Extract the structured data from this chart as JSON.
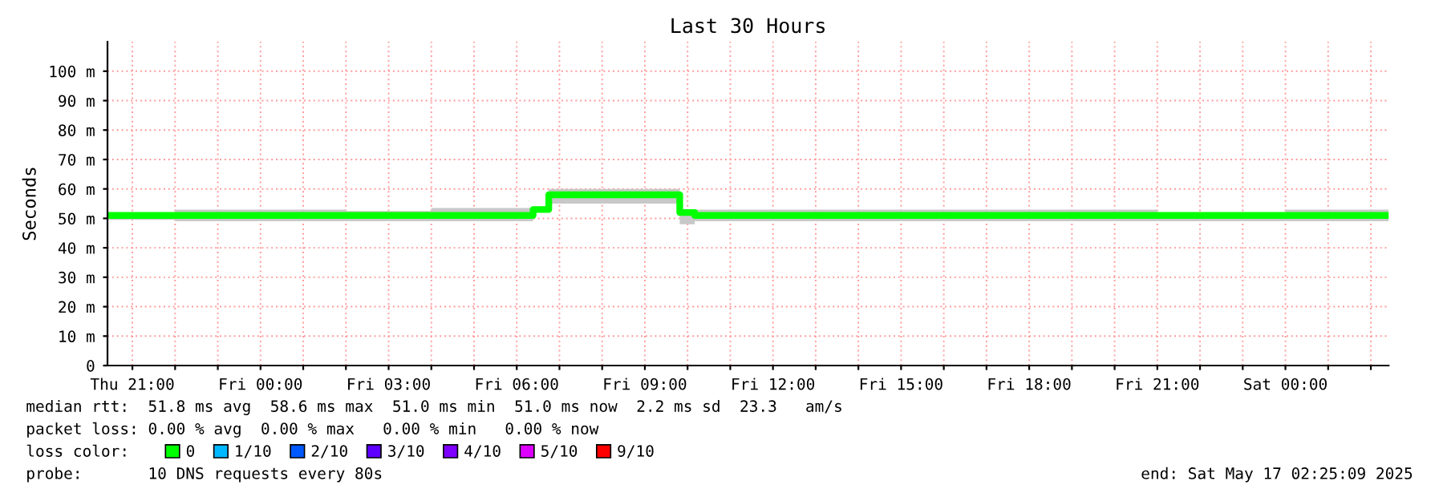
{
  "chart_data": {
    "type": "step",
    "title": "Last 30 Hours",
    "ylabel": "Seconds",
    "x": [
      "2025-05-15T20:25",
      "2025-05-15T22:00",
      "2025-05-16T00:00",
      "2025-05-16T02:00",
      "2025-05-16T04:00",
      "2025-05-16T06:23",
      "2025-05-16T06:45",
      "2025-05-16T08:00",
      "2025-05-16T09:49",
      "2025-05-16T10:10",
      "2025-05-16T12:00",
      "2025-05-16T15:00",
      "2025-05-16T18:00",
      "2025-05-16T21:00",
      "2025-05-17T00:00",
      "2025-05-17T02:25"
    ],
    "series": [
      {
        "name": "0",
        "color": "#00ff00",
        "values": [
          51,
          51,
          51,
          51,
          51,
          53,
          58,
          58,
          52,
          51,
          51,
          51,
          51,
          51,
          51,
          51
        ],
        "lower": [
          49.5,
          49,
          49,
          49,
          49,
          52,
          55,
          55,
          48,
          49,
          49,
          49,
          49,
          49,
          49,
          49
        ],
        "upper": [
          52,
          53,
          53,
          52.5,
          53.5,
          54,
          60,
          60,
          53,
          53,
          53,
          53,
          53,
          52,
          53,
          52
        ]
      },
      {
        "name": "1/10",
        "color": "#00b8ff",
        "values": [
          null,
          null,
          null,
          null,
          null,
          null,
          null,
          null,
          null,
          null,
          null,
          null,
          null,
          null,
          null,
          null
        ]
      },
      {
        "name": "2/10",
        "color": "#0059ff",
        "values": [
          null,
          null,
          null,
          null,
          null,
          null,
          null,
          null,
          null,
          null,
          null,
          null,
          null,
          null,
          null,
          null
        ]
      },
      {
        "name": "3/10",
        "color": "#5e00ff",
        "values": [
          null,
          null,
          null,
          null,
          null,
          null,
          null,
          null,
          null,
          null,
          null,
          null,
          null,
          null,
          null,
          null
        ]
      },
      {
        "name": "4/10",
        "color": "#7e00ff",
        "values": [
          null,
          null,
          null,
          null,
          null,
          null,
          null,
          null,
          null,
          null,
          null,
          null,
          null,
          null,
          null,
          null
        ]
      },
      {
        "name": "5/10",
        "color": "#dd00ff",
        "values": [
          null,
          null,
          null,
          null,
          null,
          null,
          null,
          null,
          null,
          null,
          null,
          null,
          null,
          null,
          null,
          null
        ]
      },
      {
        "name": "9/10",
        "color": "#ff0000",
        "values": [
          null,
          null,
          null,
          null,
          null,
          null,
          null,
          null,
          null,
          null,
          null,
          null,
          null,
          null,
          null,
          null
        ]
      }
    ],
    "legend_title": "loss color:",
    "legend": "bottom left",
    "xlim": [
      "2025-05-15T20:25",
      "2025-05-17T02:25"
    ],
    "xticks": [
      {
        "value": "2025-05-15T21:00",
        "label": "Thu 21:00"
      },
      {
        "value": "2025-05-15T22:00",
        "label": null
      },
      {
        "value": "2025-05-15T23:00",
        "label": null
      },
      {
        "value": "2025-05-16T00:00",
        "label": "Fri 00:00"
      },
      {
        "value": "2025-05-16T01:00",
        "label": null
      },
      {
        "value": "2025-05-16T02:00",
        "label": null
      },
      {
        "value": "2025-05-16T03:00",
        "label": "Fri 03:00"
      },
      {
        "value": "2025-05-16T04:00",
        "label": null
      },
      {
        "value": "2025-05-16T05:00",
        "label": null
      },
      {
        "value": "2025-05-16T06:00",
        "label": "Fri 06:00"
      },
      {
        "value": "2025-05-16T07:00",
        "label": null
      },
      {
        "value": "2025-05-16T08:00",
        "label": null
      },
      {
        "value": "2025-05-16T09:00",
        "label": "Fri 09:00"
      },
      {
        "value": "2025-05-16T10:00",
        "label": null
      },
      {
        "value": "2025-05-16T11:00",
        "label": null
      },
      {
        "value": "2025-05-16T12:00",
        "label": "Fri 12:00"
      },
      {
        "value": "2025-05-16T13:00",
        "label": null
      },
      {
        "value": "2025-05-16T14:00",
        "label": null
      },
      {
        "value": "2025-05-16T15:00",
        "label": "Fri 15:00"
      },
      {
        "value": "2025-05-16T16:00",
        "label": null
      },
      {
        "value": "2025-05-16T17:00",
        "label": null
      },
      {
        "value": "2025-05-16T18:00",
        "label": "Fri 18:00"
      },
      {
        "value": "2025-05-16T19:00",
        "label": null
      },
      {
        "value": "2025-05-16T20:00",
        "label": null
      },
      {
        "value": "2025-05-16T21:00",
        "label": "Fri 21:00"
      },
      {
        "value": "2025-05-16T22:00",
        "label": null
      },
      {
        "value": "2025-05-16T23:00",
        "label": null
      },
      {
        "value": "2025-05-17T00:00",
        "label": "Sat 00:00"
      },
      {
        "value": "2025-05-17T01:00",
        "label": null
      },
      {
        "value": "2025-05-17T02:00",
        "label": null
      }
    ],
    "ylim": [
      0,
      110
    ],
    "yticks": [
      0,
      {
        "value": 10,
        "label": "10 m"
      },
      {
        "value": 20,
        "label": "20 m"
      },
      {
        "value": 30,
        "label": "30 m"
      },
      {
        "value": 40,
        "label": "40 m"
      },
      {
        "value": 50,
        "label": "50 m"
      },
      {
        "value": 60,
        "label": "60 m"
      },
      {
        "value": 70,
        "label": "70 m"
      },
      {
        "value": 80,
        "label": "80 m"
      },
      {
        "value": 90,
        "label": "90 m"
      },
      {
        "value": 100,
        "label": "100 m"
      }
    ],
    "grid": true,
    "annotations": [
      "median rtt:  51.8 ms avg  58.6 ms max  51.0 ms min  51.0 ms now  2.2 ms sd  23.3   am/s",
      "packet loss: 0.00 % avg  0.00 % max   0.00 % min   0.00 % now",
      "probe:       10 DNS requests every 80s",
      "end: Sat May 17 02:25:09 2025"
    ]
  }
}
